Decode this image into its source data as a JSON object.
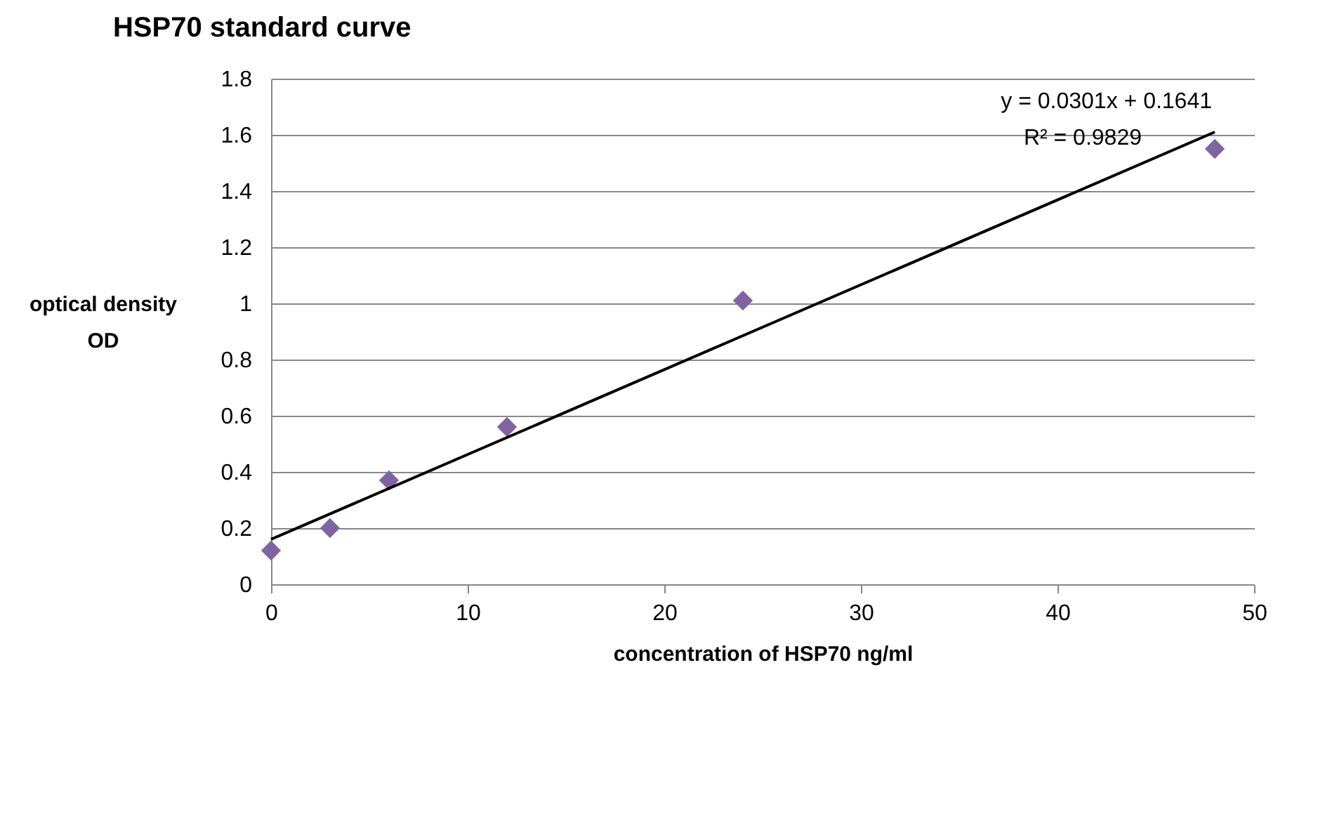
{
  "chart_data": {
    "type": "scatter",
    "title": "HSP70 standard curve",
    "xlabel": "concentration of HSP70 ng/ml",
    "ylabel": "optical density OD",
    "x": [
      0,
      3,
      6,
      12,
      24,
      48
    ],
    "series": [
      {
        "color": "#8064a2",
        "marker": "diamond",
        "values": [
          0.12,
          0.2,
          0.37,
          0.56,
          1.01,
          1.55
        ]
      },
      {
        "type": "line",
        "color": "#000000",
        "x": [
          0,
          48
        ],
        "marker": "none",
        "values": [
          0.16,
          1.61
        ]
      }
    ],
    "annotations": [
      "y = 0.0301x + 0.1641",
      "R² = 0.9829"
    ],
    "xlim": [
      0,
      50
    ],
    "xticks": [
      0,
      10,
      20,
      30,
      40,
      50
    ],
    "ylim": [
      0,
      1.8
    ],
    "yticks": [
      0,
      0.2,
      0.4,
      0.6,
      0.8,
      1,
      1.2,
      1.4,
      1.6,
      1.8
    ],
    "grid": "y"
  }
}
